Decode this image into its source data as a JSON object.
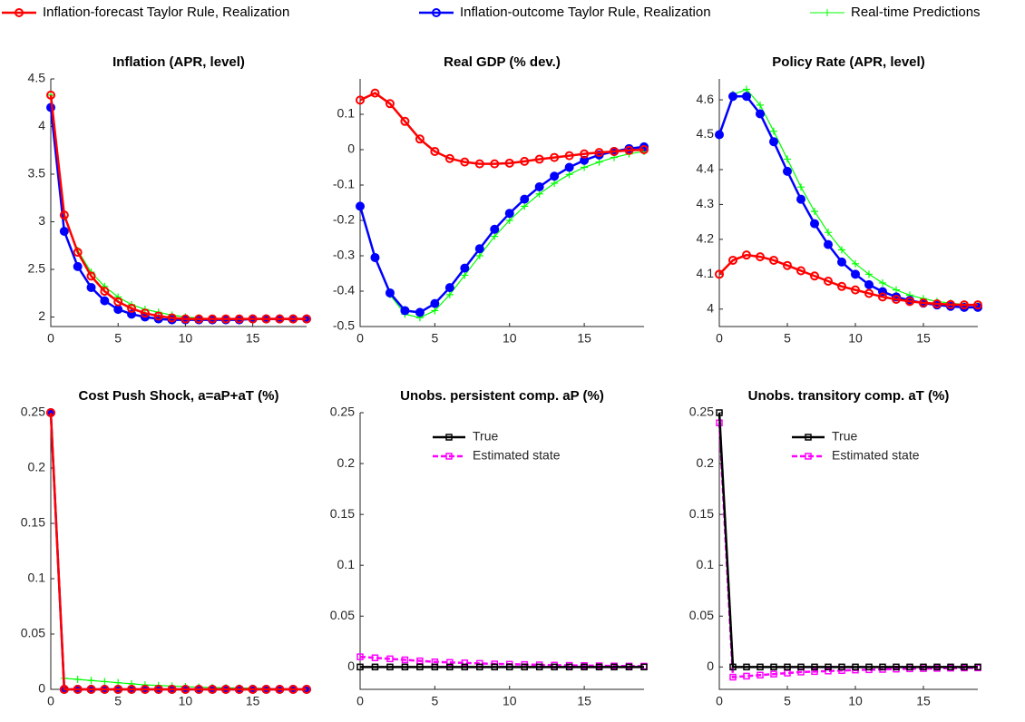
{
  "chart_data": [
    {
      "type": "line",
      "title": "Inflation (APR, level)",
      "x": [
        0,
        1,
        2,
        3,
        4,
        5,
        6,
        7,
        8,
        9,
        10,
        11,
        12,
        13,
        14,
        15,
        16,
        17,
        18,
        19
      ],
      "xlim": [
        0,
        19
      ],
      "xticks": [
        0,
        5,
        10,
        15
      ],
      "ylim": [
        1.9,
        4.5
      ],
      "yticks": [
        2,
        2.5,
        3,
        3.5,
        4,
        4.5
      ],
      "series": [
        {
          "name": "Inflation-forecast Taylor Rule, Realization",
          "color": "#ff0000",
          "marker": "o",
          "values": [
            4.33,
            3.07,
            2.68,
            2.43,
            2.27,
            2.16,
            2.09,
            2.04,
            2.01,
            1.99,
            1.98,
            1.98,
            1.98,
            1.98,
            1.98,
            1.98,
            1.98,
            1.98,
            1.98,
            1.98
          ]
        },
        {
          "name": "Inflation-outcome Taylor Rule, Realization",
          "color": "#0000ff",
          "marker": "o",
          "values": [
            4.2,
            2.9,
            2.53,
            2.31,
            2.17,
            2.08,
            2.03,
            2.0,
            1.98,
            1.97,
            1.97,
            1.97,
            1.97,
            1.97,
            1.97,
            1.98,
            1.98,
            1.98,
            1.98,
            1.98
          ]
        },
        {
          "name": "Real-time Predictions",
          "color": "#00ff00",
          "marker": "+",
          "values": [
            4.33,
            3.05,
            2.7,
            2.47,
            2.32,
            2.21,
            2.13,
            2.08,
            2.05,
            2.02,
            2.0,
            1.99,
            1.98,
            1.98,
            1.98,
            1.98,
            1.98,
            1.98,
            1.98,
            1.98
          ]
        }
      ]
    },
    {
      "type": "line",
      "title": "Real GDP (% dev.)",
      "x": [
        0,
        1,
        2,
        3,
        4,
        5,
        6,
        7,
        8,
        9,
        10,
        11,
        12,
        13,
        14,
        15,
        16,
        17,
        18,
        19
      ],
      "xlim": [
        0,
        19
      ],
      "xticks": [
        0,
        5,
        10,
        15
      ],
      "ylim": [
        -0.5,
        0.2
      ],
      "yticks": [
        -0.5,
        -0.4,
        -0.3,
        -0.2,
        -0.1,
        0,
        0.1
      ],
      "series": [
        {
          "color": "#ff0000",
          "marker": "o",
          "values": [
            0.14,
            0.16,
            0.13,
            0.08,
            0.03,
            -0.005,
            -0.025,
            -0.035,
            -0.04,
            -0.04,
            -0.038,
            -0.033,
            -0.027,
            -0.022,
            -0.017,
            -0.012,
            -0.008,
            -0.005,
            -0.002,
            0.0
          ]
        },
        {
          "color": "#0000ff",
          "marker": "o",
          "values": [
            -0.16,
            -0.305,
            -0.405,
            -0.455,
            -0.46,
            -0.435,
            -0.39,
            -0.335,
            -0.28,
            -0.225,
            -0.18,
            -0.14,
            -0.105,
            -0.075,
            -0.05,
            -0.03,
            -0.015,
            -0.005,
            0.003,
            0.008
          ]
        },
        {
          "color": "#00ff00",
          "marker": "+",
          "values": [
            -0.16,
            -0.305,
            -0.41,
            -0.465,
            -0.475,
            -0.455,
            -0.41,
            -0.355,
            -0.3,
            -0.245,
            -0.2,
            -0.16,
            -0.125,
            -0.095,
            -0.07,
            -0.05,
            -0.035,
            -0.022,
            -0.012,
            -0.005
          ]
        }
      ]
    },
    {
      "type": "line",
      "title": "Policy Rate (APR, level)",
      "x": [
        0,
        1,
        2,
        3,
        4,
        5,
        6,
        7,
        8,
        9,
        10,
        11,
        12,
        13,
        14,
        15,
        16,
        17,
        18,
        19
      ],
      "xlim": [
        0,
        19
      ],
      "xticks": [
        0,
        5,
        10,
        15
      ],
      "ylim": [
        3.95,
        4.66
      ],
      "yticks": [
        4,
        4.1,
        4.2,
        4.3,
        4.4,
        4.5,
        4.6
      ],
      "series": [
        {
          "color": "#ff0000",
          "marker": "o",
          "values": [
            4.1,
            4.14,
            4.155,
            4.15,
            4.14,
            4.125,
            4.11,
            4.095,
            4.08,
            4.065,
            4.055,
            4.045,
            4.035,
            4.028,
            4.022,
            4.018,
            4.015,
            4.013,
            4.012,
            4.012
          ]
        },
        {
          "color": "#0000ff",
          "marker": "o",
          "values": [
            4.5,
            4.61,
            4.61,
            4.56,
            4.48,
            4.395,
            4.315,
            4.245,
            4.185,
            4.135,
            4.1,
            4.07,
            4.05,
            4.035,
            4.025,
            4.017,
            4.012,
            4.008,
            4.005,
            4.005
          ]
        },
        {
          "color": "#00ff00",
          "marker": "+",
          "values": [
            4.5,
            4.615,
            4.63,
            4.585,
            4.51,
            4.43,
            4.35,
            4.28,
            4.22,
            4.17,
            4.13,
            4.1,
            4.075,
            4.055,
            4.04,
            4.03,
            4.022,
            4.017,
            4.013,
            4.01
          ]
        }
      ]
    },
    {
      "type": "line",
      "title": "Cost Push Shock, a=aP+aT (%)",
      "x": [
        0,
        1,
        2,
        3,
        4,
        5,
        6,
        7,
        8,
        9,
        10,
        11,
        12,
        13,
        14,
        15,
        16,
        17,
        18,
        19
      ],
      "xlim": [
        0,
        19
      ],
      "xticks": [
        0,
        5,
        10,
        15
      ],
      "ylim": [
        0,
        0.25
      ],
      "yticks": [
        0,
        0.05,
        0.1,
        0.15,
        0.2,
        0.25
      ],
      "series": [
        {
          "color": "#ff0000",
          "marker": "o",
          "values": [
            0.25,
            0,
            0,
            0,
            0,
            0,
            0,
            0,
            0,
            0,
            0,
            0,
            0,
            0,
            0,
            0,
            0,
            0,
            0,
            0
          ]
        },
        {
          "color": "#0000ff",
          "marker": "o",
          "values": [
            0.25,
            0,
            0,
            0,
            0,
            0,
            0,
            0,
            0,
            0,
            0,
            0,
            0,
            0,
            0,
            0,
            0,
            0,
            0,
            0
          ]
        },
        {
          "color": "#00ff00",
          "marker": "+",
          "values": [
            0.25,
            0.01,
            0.009,
            0.008,
            0.007,
            0.006,
            0.005,
            0.004,
            0.0035,
            0.003,
            0.0025,
            0.002,
            0.0017,
            0.0014,
            0.0012,
            0.001,
            0.0008,
            0.0006,
            0.0005,
            0.0004
          ]
        }
      ]
    },
    {
      "type": "line",
      "title": "Unobs. persistent comp. aP (%)",
      "x": [
        0,
        1,
        2,
        3,
        4,
        5,
        6,
        7,
        8,
        9,
        10,
        11,
        12,
        13,
        14,
        15,
        16,
        17,
        18,
        19
      ],
      "xlim": [
        0,
        19
      ],
      "xticks": [
        0,
        5,
        10,
        15
      ],
      "ylim": [
        -0.022,
        0.25
      ],
      "yticks": [
        0,
        0.05,
        0.1,
        0.15,
        0.2,
        0.25
      ],
      "legend": "upper left",
      "series": [
        {
          "name": "True",
          "color": "#000000",
          "marker": "s",
          "values": [
            0,
            0,
            0,
            0,
            0,
            0,
            0,
            0,
            0,
            0,
            0,
            0,
            0,
            0,
            0,
            0,
            0,
            0,
            0,
            0
          ]
        },
        {
          "name": "Estimated state",
          "color": "#ff00ff",
          "marker": "s",
          "dash": true,
          "values": [
            0.01,
            0.009,
            0.008,
            0.007,
            0.006,
            0.005,
            0.0045,
            0.004,
            0.0035,
            0.003,
            0.0027,
            0.0024,
            0.0021,
            0.0018,
            0.0016,
            0.0014,
            0.0012,
            0.001,
            0.0009,
            0.0008
          ]
        }
      ]
    },
    {
      "type": "line",
      "title": "Unobs. transitory comp. aT (%)",
      "x": [
        0,
        1,
        2,
        3,
        4,
        5,
        6,
        7,
        8,
        9,
        10,
        11,
        12,
        13,
        14,
        15,
        16,
        17,
        18,
        19
      ],
      "xlim": [
        0,
        19
      ],
      "xticks": [
        0,
        5,
        10,
        15
      ],
      "ylim": [
        -0.022,
        0.25
      ],
      "yticks": [
        0,
        0.05,
        0.1,
        0.15,
        0.2,
        0.25
      ],
      "legend": "upper left",
      "series": [
        {
          "name": "True",
          "color": "#000000",
          "marker": "s",
          "values": [
            0.25,
            0,
            0,
            0,
            0,
            0,
            0,
            0,
            0,
            0,
            0,
            0,
            0,
            0,
            0,
            0,
            0,
            0,
            0,
            0
          ]
        },
        {
          "name": "Estimated state",
          "color": "#ff00ff",
          "marker": "s",
          "dash": true,
          "values": [
            0.24,
            -0.01,
            -0.009,
            -0.008,
            -0.007,
            -0.006,
            -0.005,
            -0.0045,
            -0.004,
            -0.0035,
            -0.003,
            -0.0027,
            -0.0024,
            -0.0021,
            -0.0018,
            -0.0016,
            -0.0014,
            -0.0012,
            -0.001,
            -0.0009
          ]
        }
      ]
    }
  ]
}
